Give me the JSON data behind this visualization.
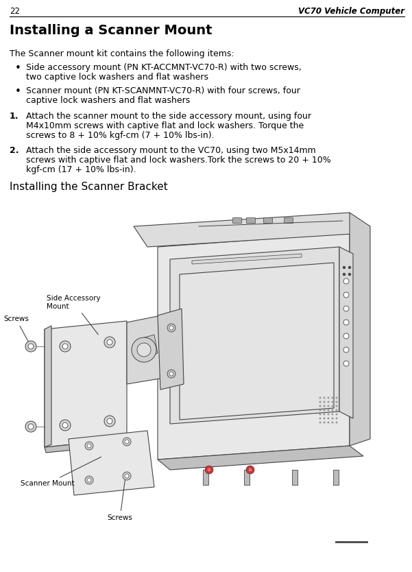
{
  "page_number": "22",
  "header_title": "VC70 Vehicle Computer",
  "section_title": "Installing a Scanner Mount",
  "body_text_intro": "The Scanner mount kit contains the following items:",
  "bullet1_line1": "Side accessory mount (PN KT-ACCMNT-VC70-R) with two screws,",
  "bullet1_line2": "two captive lock washers and flat washers",
  "bullet2_line1": "Scanner mount (PN KT-SCANMNT-VC70-R) with four screws, four",
  "bullet2_line2": "captive lock washers and flat washers",
  "step1_label": "1.",
  "step1_line1": "Attach the scanner mount to the side accessory mount, using four",
  "step1_line2": "M4x10mm screws with captive flat and lock washers. Torque the",
  "step1_line3": "screws to 8 + 10% kgf-cm (7 + 10% lbs-in).",
  "step2_label": "2.",
  "step2_line1": "Attach the side accessory mount to the VC70, using two M5x14mm",
  "step2_line2": "screws with captive flat and lock washers.Tork the screws to 20 + 10%",
  "step2_line3": "kgf-cm (17 + 10% lbs-in).",
  "figure_caption": "Installing the Scanner Bracket",
  "label_side_accessory": "Side Accessory\nMount",
  "label_screws_top": "Screws",
  "label_scanner_mount": "Scanner Mount",
  "label_screws_bottom": "Screws",
  "bg_color": "#ffffff",
  "text_color": "#000000",
  "line_color": "#000000",
  "dark_gray": "#444444",
  "mid_gray": "#888888",
  "light_gray": "#cccccc",
  "lighter_gray": "#e8e8e8",
  "font_size_header": 8.5,
  "font_size_title": 14,
  "font_size_body": 9,
  "font_size_caption": 11,
  "font_size_label": 7.5
}
